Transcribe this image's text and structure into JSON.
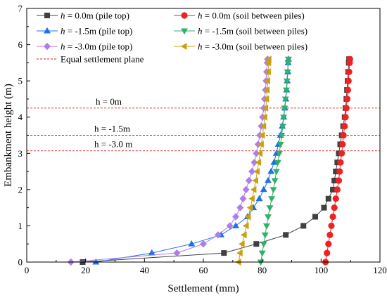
{
  "chart_data": {
    "type": "line",
    "xlabel": "Settlement (mm)",
    "ylabel": "Embankment height (m)",
    "xlim": [
      0,
      120
    ],
    "ylim": [
      0,
      7
    ],
    "x_ticks": [
      "0",
      "20",
      "40",
      "60",
      "80",
      "100",
      "120"
    ],
    "y_ticks": [
      "0",
      "1",
      "2",
      "3",
      "4",
      "5",
      "6",
      "7"
    ],
    "grid": false,
    "legend_position": "top-left",
    "legend": [
      {
        "var": "h",
        "label": " = 0.0m (pile top)"
      },
      {
        "var": "h",
        "label": " = 0.0m (soil between piles)"
      },
      {
        "var": "h",
        "label": " = -1.5m (pile top)"
      },
      {
        "var": "h",
        "label": " = -1.5m (soil between piles)"
      },
      {
        "var": "h",
        "label": " = -3.0m (pile top)"
      },
      {
        "var": "h",
        "label": " = -3.0m (soil between piles)"
      },
      {
        "var": "",
        "label": "Equal settlement plane"
      }
    ],
    "equal_settlement_planes": [
      {
        "y": 4.25,
        "label": "h = 0m"
      },
      {
        "y": 3.5,
        "label": "h = -1.5m"
      },
      {
        "y": 3.07,
        "label": "h = -3.0 m"
      }
    ],
    "series": [
      {
        "color": "#404040",
        "marker": "square",
        "points": [
          [
            19,
            0
          ],
          [
            67,
            0.25
          ],
          [
            78,
            0.5
          ],
          [
            88,
            0.75
          ],
          [
            94,
            1.0
          ],
          [
            98,
            1.25
          ],
          [
            101,
            1.5
          ],
          [
            102.5,
            1.75
          ],
          [
            104,
            2.0
          ],
          [
            104.5,
            2.25
          ],
          [
            105,
            2.5
          ],
          [
            105.5,
            2.75
          ],
          [
            106,
            3.0
          ],
          [
            106.5,
            3.25
          ],
          [
            107,
            3.5
          ],
          [
            107.5,
            3.75
          ],
          [
            108,
            4.0
          ],
          [
            108.3,
            4.25
          ],
          [
            108.6,
            4.5
          ],
          [
            108.8,
            4.75
          ],
          [
            109,
            5.0
          ],
          [
            109.2,
            5.25
          ],
          [
            109.4,
            5.5
          ],
          [
            109.5,
            5.6
          ]
        ]
      },
      {
        "color": "#ee2222",
        "marker": "circle",
        "points": [
          [
            101.5,
            0
          ],
          [
            102,
            0.25
          ],
          [
            102.5,
            0.5
          ],
          [
            103,
            0.75
          ],
          [
            103.5,
            1.0
          ],
          [
            104,
            1.25
          ],
          [
            104.5,
            1.5
          ],
          [
            105,
            1.75
          ],
          [
            105.5,
            2.0
          ],
          [
            106,
            2.25
          ],
          [
            106.3,
            2.5
          ],
          [
            106.6,
            2.75
          ],
          [
            107,
            3.0
          ],
          [
            107.3,
            3.25
          ],
          [
            107.6,
            3.5
          ],
          [
            108,
            3.75
          ],
          [
            108.3,
            4.0
          ],
          [
            108.6,
            4.25
          ],
          [
            108.9,
            4.5
          ],
          [
            109.1,
            4.75
          ],
          [
            109.3,
            5.0
          ],
          [
            109.5,
            5.25
          ],
          [
            109.7,
            5.5
          ],
          [
            109.8,
            5.6
          ]
        ]
      },
      {
        "color": "#1f6fe8",
        "marker": "triangle-up",
        "points": [
          [
            23.5,
            0
          ],
          [
            42.5,
            0.25
          ],
          [
            56,
            0.5
          ],
          [
            66,
            0.75
          ],
          [
            71,
            1.0
          ],
          [
            75,
            1.25
          ],
          [
            77,
            1.5
          ],
          [
            79,
            1.75
          ],
          [
            80.5,
            2.0
          ],
          [
            82,
            2.25
          ],
          [
            83,
            2.5
          ],
          [
            84,
            2.75
          ],
          [
            84.8,
            3.0
          ],
          [
            85.5,
            3.25
          ],
          [
            86.2,
            3.5
          ],
          [
            86.8,
            3.75
          ],
          [
            87.3,
            4.0
          ],
          [
            87.7,
            4.25
          ],
          [
            88,
            4.5
          ],
          [
            88.3,
            4.75
          ],
          [
            88.5,
            5.0
          ],
          [
            88.7,
            5.25
          ],
          [
            88.8,
            5.5
          ],
          [
            88.9,
            5.6
          ]
        ]
      },
      {
        "color": "#33b067",
        "marker": "triangle-down",
        "points": [
          [
            79.5,
            0
          ],
          [
            80,
            0.25
          ],
          [
            80.5,
            0.5
          ],
          [
            81,
            0.75
          ],
          [
            81.5,
            1.0
          ],
          [
            82,
            1.25
          ],
          [
            82.6,
            1.5
          ],
          [
            83.2,
            1.75
          ],
          [
            83.8,
            2.0
          ],
          [
            84.3,
            2.25
          ],
          [
            84.8,
            2.5
          ],
          [
            85.3,
            2.75
          ],
          [
            85.8,
            3.0
          ],
          [
            86.2,
            3.25
          ],
          [
            86.6,
            3.5
          ],
          [
            87,
            3.75
          ],
          [
            87.3,
            4.0
          ],
          [
            87.6,
            4.25
          ],
          [
            87.9,
            4.5
          ],
          [
            88.2,
            4.75
          ],
          [
            88.4,
            5.0
          ],
          [
            88.6,
            5.25
          ],
          [
            88.8,
            5.5
          ],
          [
            88.9,
            5.6
          ]
        ]
      },
      {
        "color": "#b07de8",
        "marker": "diamond",
        "points": [
          [
            15,
            0
          ],
          [
            51,
            0.25
          ],
          [
            60,
            0.5
          ],
          [
            65,
            0.75
          ],
          [
            69,
            1.0
          ],
          [
            71,
            1.25
          ],
          [
            72.5,
            1.5
          ],
          [
            73.5,
            1.75
          ],
          [
            74.5,
            2.0
          ],
          [
            75.5,
            2.25
          ],
          [
            76.5,
            2.5
          ],
          [
            77.3,
            2.75
          ],
          [
            78,
            3.0
          ],
          [
            78.6,
            3.25
          ],
          [
            79.2,
            3.5
          ],
          [
            79.7,
            3.75
          ],
          [
            80.1,
            4.0
          ],
          [
            80.5,
            4.25
          ],
          [
            80.8,
            4.5
          ],
          [
            81.1,
            4.75
          ],
          [
            81.3,
            5.0
          ],
          [
            81.5,
            5.25
          ],
          [
            81.7,
            5.5
          ],
          [
            81.8,
            5.6
          ]
        ]
      },
      {
        "color": "#c9a012",
        "marker": "triangle-left",
        "points": [
          [
            72,
            0
          ],
          [
            72.5,
            0.25
          ],
          [
            73.2,
            0.5
          ],
          [
            73.9,
            0.75
          ],
          [
            74.6,
            1.0
          ],
          [
            75.3,
            1.25
          ],
          [
            76,
            1.5
          ],
          [
            76.6,
            1.75
          ],
          [
            77.2,
            2.0
          ],
          [
            77.8,
            2.25
          ],
          [
            78.3,
            2.5
          ],
          [
            78.8,
            2.75
          ],
          [
            79.3,
            3.0
          ],
          [
            79.7,
            3.25
          ],
          [
            80.1,
            3.5
          ],
          [
            80.5,
            3.75
          ],
          [
            80.9,
            4.0
          ],
          [
            81.2,
            4.25
          ],
          [
            81.5,
            4.5
          ],
          [
            81.7,
            4.75
          ],
          [
            81.9,
            5.0
          ],
          [
            82.1,
            5.25
          ],
          [
            82.2,
            5.5
          ],
          [
            82.3,
            5.6
          ]
        ]
      }
    ]
  }
}
